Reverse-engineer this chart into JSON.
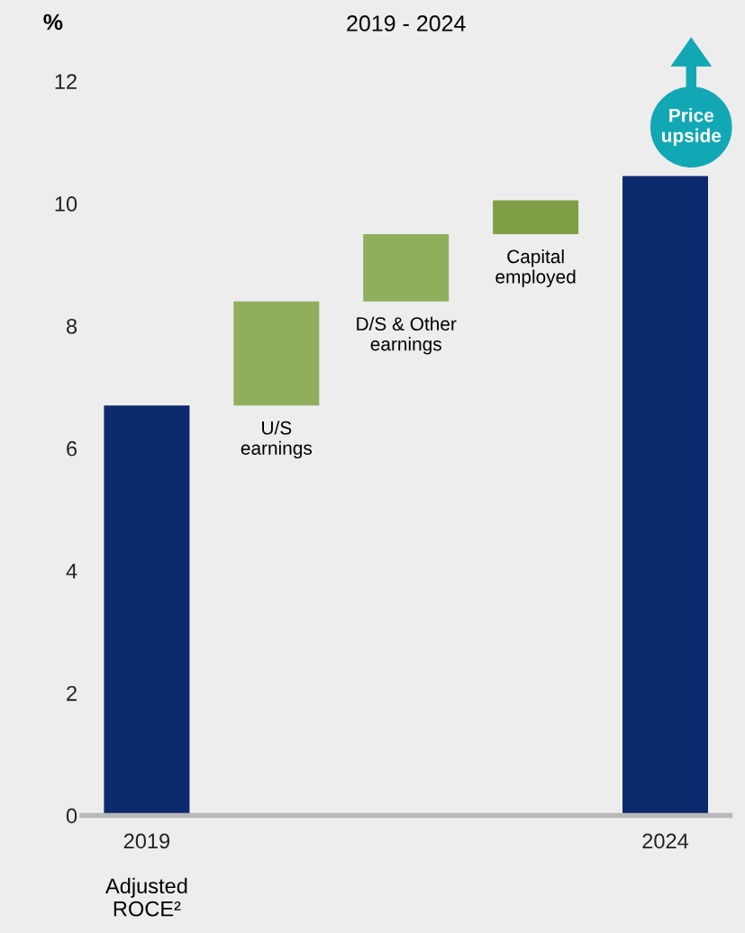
{
  "chart_data": {
    "type": "bar",
    "title": "2019 - 2024",
    "ylabel": "%",
    "categories": [
      "2019",
      null,
      null,
      null,
      "2024"
    ],
    "values": [
      6.7,
      1.7,
      1.1,
      0.55,
      10.45
    ],
    "base": [
      0,
      6.7,
      8.4,
      9.5,
      0
    ],
    "colors": [
      "#0c2a6e",
      "#8fae5e",
      "#8fae5e",
      "#7f9f45",
      "#0c2a6e"
    ],
    "ylim": [
      0,
      12
    ],
    "yticks": [
      0,
      2,
      4,
      6,
      8,
      10,
      12
    ],
    "grid": false,
    "legend": false,
    "annotations": [
      "Adjusted\nROCE²",
      "U/S\nearnings",
      "D/S & Other\nearnings",
      "Capital\nemployed",
      "Price\nupside"
    ]
  }
}
